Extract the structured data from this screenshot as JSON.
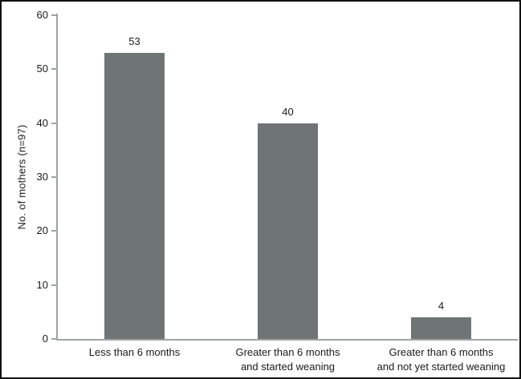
{
  "chart_data": {
    "type": "bar",
    "categories": [
      "Less than 6 months",
      "Greater than 6 months\nand started weaning",
      "Greater than 6 months\nand not yet started weaning"
    ],
    "values": [
      53,
      40,
      4
    ],
    "title": "",
    "xlabel": "",
    "ylabel": "No. of mothers (n=97)",
    "ylim": [
      0,
      60
    ],
    "ytick_step": 10,
    "ytick_labels": [
      "0",
      "10",
      "20",
      "30",
      "40",
      "50",
      "60"
    ],
    "grid": false,
    "legend": "none",
    "bar_color": "#6f7575",
    "axis_color": "#9ea3a3",
    "text_color": "#1a1a1a",
    "frame_border_color": "#111111"
  }
}
